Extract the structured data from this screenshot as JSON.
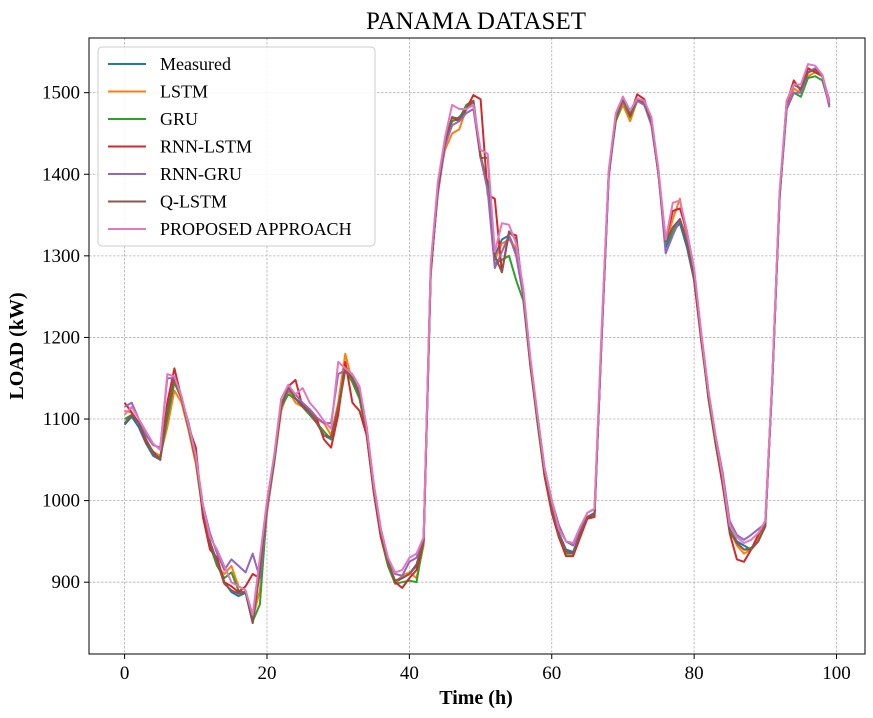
{
  "chart_data": {
    "type": "line",
    "title": "PANAMA DATASET",
    "xlabel": "Time (h)",
    "ylabel": "LOAD (kW)",
    "xlim": [
      -5,
      104
    ],
    "ylim": [
      812,
      1567
    ],
    "xticks": [
      0,
      20,
      40,
      60,
      80,
      100
    ],
    "yticks": [
      900,
      1000,
      1100,
      1200,
      1300,
      1400,
      1500
    ],
    "grid": true,
    "legend_position": "top-left",
    "x": [
      0,
      1,
      2,
      3,
      4,
      5,
      6,
      7,
      8,
      9,
      10,
      11,
      12,
      13,
      14,
      15,
      16,
      17,
      18,
      19,
      20,
      21,
      22,
      23,
      24,
      25,
      26,
      27,
      28,
      29,
      30,
      31,
      32,
      33,
      34,
      35,
      36,
      37,
      38,
      39,
      40,
      41,
      42,
      43,
      44,
      45,
      46,
      47,
      48,
      49,
      50,
      51,
      52,
      53,
      54,
      55,
      56,
      57,
      58,
      59,
      60,
      61,
      62,
      63,
      64,
      65,
      66,
      67,
      68,
      69,
      70,
      71,
      72,
      73,
      74,
      75,
      76,
      77,
      78,
      79,
      80,
      81,
      82,
      83,
      84,
      85,
      86,
      87,
      88,
      89,
      90,
      91,
      92,
      93,
      94,
      95,
      96,
      97,
      98,
      99
    ],
    "series": [
      {
        "name": "Measured",
        "color": "#1f77b4",
        "values": [
          1093,
          1103,
          1090,
          1070,
          1055,
          1050,
          1105,
          1145,
          1125,
          1090,
          1050,
          990,
          950,
          925,
          900,
          888,
          883,
          887,
          850,
          915,
          995,
          1050,
          1115,
          1138,
          1125,
          1118,
          1108,
          1095,
          1080,
          1075,
          1115,
          1165,
          1150,
          1130,
          1085,
          1015,
          960,
          925,
          900,
          905,
          910,
          920,
          950,
          1280,
          1380,
          1440,
          1465,
          1470,
          1480,
          1485,
          1420,
          1390,
          1300,
          1320,
          1325,
          1305,
          1255,
          1170,
          1100,
          1035,
          990,
          960,
          940,
          937,
          960,
          980,
          985,
          1200,
          1400,
          1470,
          1490,
          1475,
          1490,
          1485,
          1465,
          1400,
          1310,
          1330,
          1340,
          1310,
          1270,
          1200,
          1130,
          1075,
          1030,
          965,
          950,
          945,
          940,
          950,
          970,
          1150,
          1370,
          1490,
          1510,
          1505,
          1525,
          1530,
          1520,
          1485
        ]
      },
      {
        "name": "LSTM",
        "color": "#ff7f0e",
        "values": [
          1110,
          1108,
          1095,
          1075,
          1060,
          1055,
          1090,
          1135,
          1120,
          1085,
          1045,
          985,
          945,
          920,
          910,
          920,
          895,
          890,
          855,
          890,
          985,
          1045,
          1110,
          1135,
          1120,
          1115,
          1105,
          1100,
          1095,
          1080,
          1120,
          1180,
          1145,
          1125,
          1080,
          1010,
          955,
          920,
          900,
          908,
          912,
          905,
          945,
          1275,
          1385,
          1430,
          1450,
          1455,
          1480,
          1490,
          1425,
          1385,
          1295,
          1315,
          1320,
          1310,
          1258,
          1168,
          1095,
          1030,
          985,
          955,
          935,
          935,
          958,
          978,
          983,
          1200,
          1400,
          1465,
          1485,
          1465,
          1490,
          1485,
          1465,
          1405,
          1315,
          1345,
          1370,
          1320,
          1275,
          1200,
          1125,
          1070,
          1020,
          965,
          945,
          935,
          940,
          955,
          970,
          1150,
          1375,
          1485,
          1505,
          1500,
          1520,
          1525,
          1520,
          1490
        ]
      },
      {
        "name": "GRU",
        "color": "#2ca02c",
        "values": [
          1100,
          1105,
          1095,
          1072,
          1058,
          1052,
          1100,
          1145,
          1125,
          1088,
          1050,
          985,
          945,
          920,
          905,
          912,
          890,
          887,
          852,
          873,
          990,
          1045,
          1115,
          1130,
          1125,
          1115,
          1105,
          1095,
          1085,
          1075,
          1110,
          1160,
          1145,
          1125,
          1080,
          1010,
          955,
          920,
          898,
          900,
          902,
          900,
          950,
          1280,
          1380,
          1440,
          1465,
          1468,
          1485,
          1490,
          1420,
          1390,
          1290,
          1295,
          1300,
          1270,
          1245,
          1165,
          1095,
          1030,
          990,
          960,
          935,
          935,
          958,
          978,
          980,
          1200,
          1400,
          1465,
          1490,
          1470,
          1490,
          1485,
          1465,
          1400,
          1315,
          1330,
          1345,
          1315,
          1275,
          1200,
          1125,
          1070,
          1020,
          965,
          948,
          940,
          942,
          950,
          970,
          1148,
          1372,
          1480,
          1500,
          1495,
          1518,
          1520,
          1515,
          1485
        ]
      },
      {
        "name": "RNN-LSTM",
        "color": "#d62728",
        "values": [
          1120,
          1108,
          1095,
          1072,
          1060,
          1050,
          1120,
          1162,
          1125,
          1090,
          1065,
          980,
          940,
          930,
          900,
          895,
          888,
          895,
          910,
          905,
          990,
          1050,
          1115,
          1140,
          1148,
          1115,
          1112,
          1100,
          1075,
          1065,
          1105,
          1170,
          1120,
          1110,
          1080,
          1010,
          955,
          925,
          900,
          893,
          905,
          915,
          950,
          1280,
          1380,
          1440,
          1470,
          1465,
          1480,
          1497,
          1492,
          1375,
          1370,
          1280,
          1328,
          1325,
          1250,
          1165,
          1100,
          1030,
          985,
          955,
          932,
          932,
          955,
          978,
          980,
          1200,
          1400,
          1470,
          1495,
          1472,
          1498,
          1492,
          1462,
          1400,
          1320,
          1355,
          1358,
          1330,
          1270,
          1195,
          1128,
          1072,
          1020,
          960,
          928,
          925,
          940,
          958,
          975,
          1150,
          1375,
          1487,
          1515,
          1502,
          1530,
          1525,
          1520,
          1490
        ]
      },
      {
        "name": "RNN-GRU",
        "color": "#9467bd",
        "values": [
          1115,
          1120,
          1100,
          1080,
          1068,
          1065,
          1150,
          1150,
          1125,
          1095,
          1055,
          995,
          960,
          935,
          915,
          928,
          920,
          912,
          935,
          905,
          990,
          1050,
          1120,
          1135,
          1130,
          1120,
          1112,
          1102,
          1095,
          1095,
          1155,
          1160,
          1150,
          1135,
          1090,
          1020,
          965,
          930,
          910,
          908,
          925,
          930,
          955,
          1285,
          1375,
          1435,
          1460,
          1465,
          1475,
          1480,
          1420,
          1380,
          1285,
          1305,
          1325,
          1300,
          1250,
          1170,
          1105,
          1040,
          1000,
          970,
          950,
          945,
          965,
          985,
          990,
          1195,
          1395,
          1470,
          1490,
          1475,
          1490,
          1485,
          1460,
          1400,
          1303,
          1325,
          1345,
          1320,
          1280,
          1205,
          1135,
          1080,
          1035,
          975,
          958,
          952,
          958,
          965,
          972,
          1150,
          1375,
          1480,
          1500,
          1500,
          1525,
          1530,
          1520,
          1482
        ]
      },
      {
        "name": "Q-LSTM",
        "color": "#8c564b",
        "values": [
          1095,
          1105,
          1095,
          1075,
          1058,
          1050,
          1110,
          1150,
          1125,
          1090,
          1050,
          990,
          948,
          925,
          898,
          890,
          886,
          888,
          850,
          915,
          995,
          1050,
          1115,
          1140,
          1125,
          1115,
          1108,
          1095,
          1080,
          1078,
          1115,
          1160,
          1150,
          1130,
          1085,
          1015,
          960,
          925,
          902,
          905,
          910,
          922,
          950,
          1280,
          1380,
          1440,
          1470,
          1468,
          1480,
          1490,
          1420,
          1420,
          1300,
          1280,
          1330,
          1320,
          1255,
          1170,
          1100,
          1035,
          990,
          958,
          938,
          935,
          960,
          980,
          983,
          1200,
          1400,
          1470,
          1492,
          1475,
          1492,
          1488,
          1465,
          1400,
          1318,
          1335,
          1345,
          1315,
          1272,
          1200,
          1128,
          1075,
          1025,
          962,
          948,
          940,
          940,
          950,
          968,
          1150,
          1372,
          1488,
          1510,
          1505,
          1525,
          1528,
          1522,
          1488
        ]
      },
      {
        "name": "PROPOSED APPROACH",
        "color": "#e377c2",
        "values": [
          1105,
          1115,
          1100,
          1085,
          1070,
          1062,
          1155,
          1152,
          1128,
          1092,
          1055,
          995,
          955,
          940,
          920,
          900,
          895,
          890,
          860,
          930,
          1000,
          1055,
          1125,
          1142,
          1130,
          1138,
          1120,
          1110,
          1098,
          1088,
          1170,
          1162,
          1155,
          1140,
          1090,
          1020,
          965,
          930,
          912,
          915,
          930,
          935,
          955,
          1290,
          1390,
          1445,
          1485,
          1480,
          1480,
          1485,
          1430,
          1425,
          1305,
          1340,
          1338,
          1315,
          1260,
          1175,
          1105,
          1040,
          1000,
          965,
          950,
          948,
          968,
          985,
          990,
          1210,
          1405,
          1475,
          1495,
          1478,
          1493,
          1490,
          1470,
          1405,
          1320,
          1365,
          1368,
          1330,
          1285,
          1205,
          1135,
          1080,
          1030,
          970,
          955,
          948,
          952,
          960,
          975,
          1155,
          1380,
          1490,
          1510,
          1510,
          1535,
          1533,
          1522,
          1488
        ]
      }
    ]
  }
}
